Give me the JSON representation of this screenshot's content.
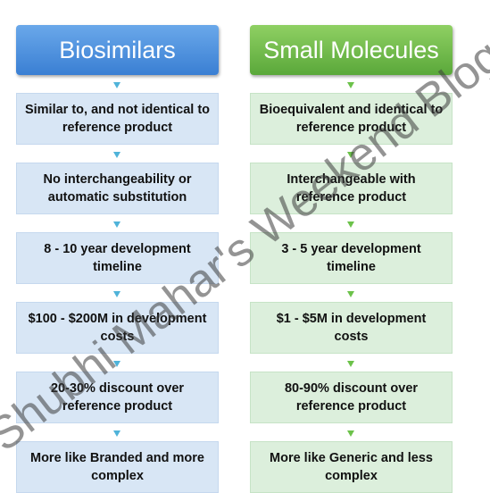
{
  "columns": [
    {
      "title": "Biosimilars",
      "items": [
        "Similar to, and not identical to reference product",
        "No interchangeability or automatic substitution",
        "8 - 10 year development timeline",
        "$100 - $200M in development costs",
        "20-30% discount over reference product",
        "More like Branded and more complex"
      ]
    },
    {
      "title": "Small Molecules",
      "items": [
        "Bioequivalent and identical to reference product",
        "Interchangeable with reference product",
        "3 - 5 year development timeline",
        "$1 - $5M in development costs",
        "80-90% discount over reference product",
        "More like Generic and less complex"
      ]
    }
  ],
  "watermark": "Shubhi Mahar's Weekend Blog"
}
